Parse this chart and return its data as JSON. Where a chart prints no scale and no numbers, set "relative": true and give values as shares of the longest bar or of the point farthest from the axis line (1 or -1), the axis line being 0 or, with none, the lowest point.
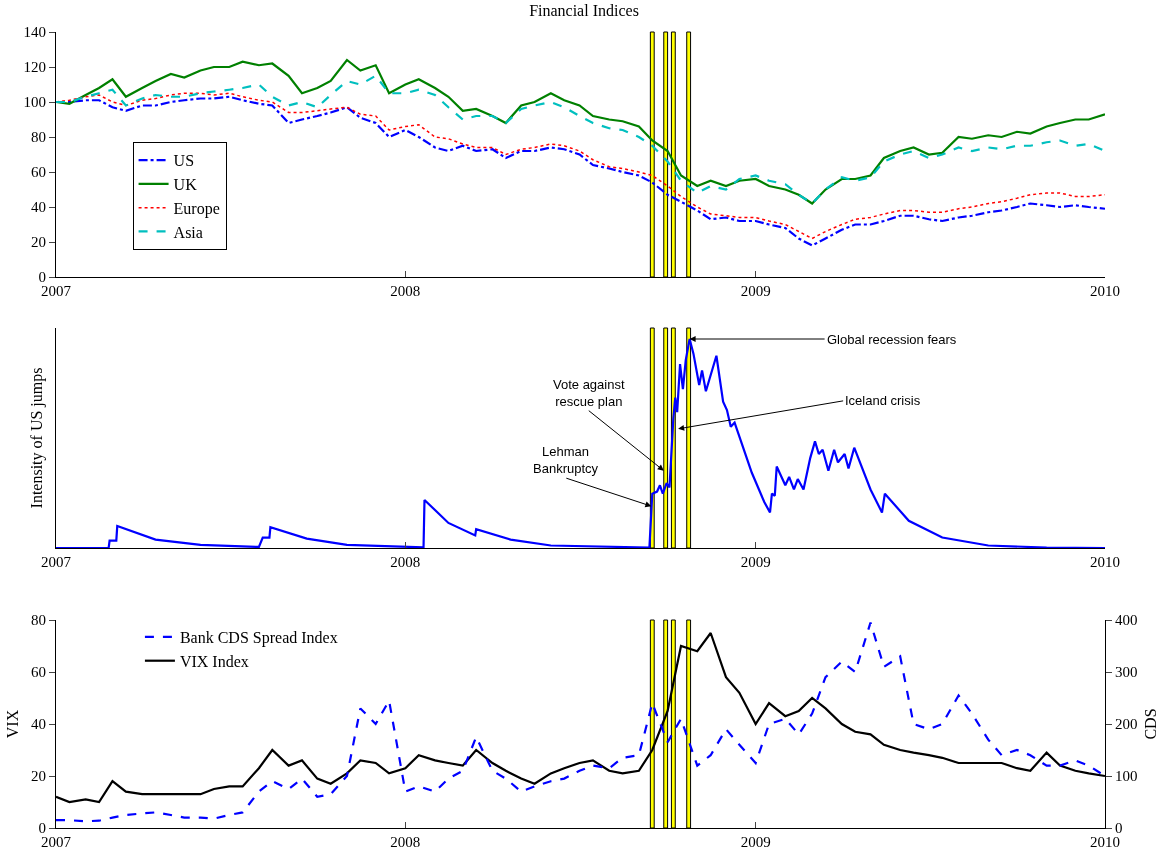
{
  "chart_data": [
    {
      "type": "line",
      "title": "Financial Indices",
      "xlim": [
        "2007-01-01",
        "2010-01-01"
      ],
      "xticks": [
        {
          "value": "2007-01-01",
          "label": "2007"
        },
        {
          "value": "2008-01-01",
          "label": "2008"
        },
        {
          "value": "2009-01-01",
          "label": "2009"
        },
        {
          "value": "2010-01-01",
          "label": "2010"
        }
      ],
      "ylim": [
        0,
        140
      ],
      "yticks": [
        0,
        20,
        40,
        60,
        80,
        100,
        120,
        140
      ],
      "grid": false,
      "legend": "left",
      "x": [
        "2007-01-01",
        "2007-01-15",
        "2007-02-01",
        "2007-02-15",
        "2007-03-01",
        "2007-03-15",
        "2007-04-01",
        "2007-04-15",
        "2007-05-01",
        "2007-05-15",
        "2007-06-01",
        "2007-06-15",
        "2007-07-01",
        "2007-07-15",
        "2007-08-01",
        "2007-08-15",
        "2007-09-01",
        "2007-09-15",
        "2007-10-01",
        "2007-10-15",
        "2007-11-01",
        "2007-11-15",
        "2007-12-01",
        "2007-12-15",
        "2008-01-01",
        "2008-01-15",
        "2008-02-01",
        "2008-02-15",
        "2008-03-01",
        "2008-03-15",
        "2008-04-01",
        "2008-04-15",
        "2008-05-01",
        "2008-05-15",
        "2008-06-01",
        "2008-06-15",
        "2008-07-01",
        "2008-07-15",
        "2008-08-01",
        "2008-08-15",
        "2008-09-01",
        "2008-09-15",
        "2008-10-01",
        "2008-10-15",
        "2008-11-01",
        "2008-11-15",
        "2008-12-01",
        "2008-12-15",
        "2009-01-01",
        "2009-01-15",
        "2009-02-01",
        "2009-02-15",
        "2009-03-01",
        "2009-03-15",
        "2009-04-01",
        "2009-04-15",
        "2009-05-01",
        "2009-05-15",
        "2009-06-01",
        "2009-06-15",
        "2009-07-01",
        "2009-07-15",
        "2009-08-01",
        "2009-08-15",
        "2009-09-01",
        "2009-09-15",
        "2009-10-01",
        "2009-10-15",
        "2009-11-01",
        "2009-11-15",
        "2009-12-01",
        "2009-12-15",
        "2010-01-01"
      ],
      "series": [
        {
          "name": "US",
          "color": "#0000ff",
          "line_style": "dashdot",
          "values": [
            100,
            100,
            101,
            101,
            97,
            95,
            98,
            98,
            100,
            101,
            102,
            102,
            103,
            101,
            99,
            98,
            88,
            90,
            92,
            94,
            97,
            91,
            88,
            80,
            84,
            80,
            74,
            72,
            75,
            72,
            73,
            68,
            72,
            72,
            74,
            73,
            70,
            64,
            62,
            60,
            58,
            54,
            47,
            43,
            38,
            33,
            34,
            32,
            32,
            30,
            28,
            22,
            18,
            22,
            27,
            30,
            30,
            32,
            35,
            35,
            33,
            32,
            34,
            35,
            37,
            38,
            40,
            42,
            41,
            40,
            41,
            40,
            39
          ]
        },
        {
          "name": "UK",
          "color": "#008000",
          "line_style": "solid",
          "values": [
            100,
            99,
            104,
            108,
            113,
            103,
            108,
            112,
            116,
            114,
            118,
            120,
            120,
            123,
            121,
            122,
            115,
            105,
            108,
            112,
            124,
            118,
            121,
            105,
            110,
            113,
            108,
            103,
            95,
            96,
            92,
            88,
            98,
            100,
            105,
            101,
            98,
            92,
            90,
            89,
            86,
            78,
            72,
            58,
            52,
            55,
            52,
            55,
            56,
            52,
            50,
            47,
            42,
            50,
            56,
            56,
            58,
            68,
            72,
            74,
            70,
            71,
            80,
            79,
            81,
            80,
            83,
            82,
            86,
            88,
            90,
            90,
            93
          ]
        },
        {
          "name": "Europe",
          "color": "#ff0000",
          "line_style": "dotted",
          "values": [
            100,
            101,
            103,
            104,
            100,
            98,
            101,
            102,
            104,
            105,
            105,
            104,
            105,
            103,
            101,
            100,
            94,
            94,
            95,
            96,
            97,
            93,
            92,
            84,
            86,
            87,
            80,
            79,
            76,
            74,
            74,
            70,
            73,
            74,
            76,
            75,
            72,
            67,
            63,
            62,
            60,
            58,
            52,
            46,
            40,
            36,
            35,
            34,
            34,
            32,
            30,
            26,
            22,
            26,
            30,
            33,
            34,
            36,
            38,
            38,
            37,
            37,
            39,
            40,
            42,
            43,
            45,
            47,
            48,
            48,
            46,
            46,
            47
          ]
        },
        {
          "name": "Asia",
          "color": "#00bfbf",
          "line_style": "dashed",
          "values": [
            100,
            100,
            103,
            105,
            107,
            98,
            102,
            104,
            103,
            103,
            105,
            106,
            107,
            108,
            110,
            103,
            98,
            100,
            97,
            104,
            112,
            110,
            115,
            105,
            105,
            107,
            104,
            97,
            90,
            92,
            92,
            88,
            96,
            98,
            100,
            97,
            92,
            88,
            85,
            84,
            80,
            75,
            66,
            55,
            48,
            52,
            50,
            56,
            58,
            55,
            53,
            47,
            42,
            50,
            57,
            55,
            57,
            66,
            70,
            72,
            68,
            70,
            74,
            72,
            74,
            73,
            75,
            75,
            77,
            78,
            75,
            76,
            72
          ]
        }
      ],
      "bands": [
        {
          "axis": "x",
          "from": "2008-09-13",
          "to": "2008-09-17",
          "color": "#ffff00"
        },
        {
          "axis": "x",
          "from": "2008-09-27",
          "to": "2008-10-01",
          "color": "#ffff00"
        },
        {
          "axis": "x",
          "from": "2008-10-05",
          "to": "2008-10-09",
          "color": "#ffff00"
        },
        {
          "axis": "x",
          "from": "2008-10-21",
          "to": "2008-10-25",
          "color": "#ffff00"
        }
      ]
    },
    {
      "type": "line",
      "relative": true,
      "ylabel": "Intensity of US jumps",
      "grid": false,
      "xlim": [
        "2007-01-01",
        "2010-01-01"
      ],
      "xticks": [
        {
          "value": "2007-01-01",
          "label": "2007"
        },
        {
          "value": "2008-01-01",
          "label": "2008"
        },
        {
          "value": "2009-01-01",
          "label": "2009"
        },
        {
          "value": "2010-01-01",
          "label": "2010"
        }
      ],
      "x": [
        "2007-01-01",
        "2007-02-25",
        "2007-02-26",
        "2007-03-05",
        "2007-03-06",
        "2007-04-15",
        "2007-06-01",
        "2007-08-01",
        "2007-08-05",
        "2007-08-12",
        "2007-08-13",
        "2007-09-20",
        "2007-11-01",
        "2008-01-20",
        "2008-01-21",
        "2008-02-15",
        "2008-03-14",
        "2008-03-15",
        "2008-04-20",
        "2008-06-01",
        "2008-09-12",
        "2008-09-15",
        "2008-09-20",
        "2008-09-23",
        "2008-09-26",
        "2008-09-30",
        "2008-10-03",
        "2008-10-07",
        "2008-10-09",
        "2008-10-11",
        "2008-10-14",
        "2008-10-17",
        "2008-10-20",
        "2008-10-24",
        "2008-10-28",
        "2008-11-03",
        "2008-11-06",
        "2008-11-10",
        "2008-11-21",
        "2008-11-28",
        "2008-12-02",
        "2008-12-06",
        "2008-12-10",
        "2008-12-28",
        "2009-01-10",
        "2009-01-16",
        "2009-01-18",
        "2009-01-21",
        "2009-01-23",
        "2009-02-01",
        "2009-02-05",
        "2009-02-10",
        "2009-02-14",
        "2009-02-20",
        "2009-02-27",
        "2009-03-04",
        "2009-03-08",
        "2009-03-12",
        "2009-03-18",
        "2009-03-24",
        "2009-03-28",
        "2009-04-04",
        "2009-04-08",
        "2009-04-14",
        "2009-05-01",
        "2009-05-13",
        "2009-05-16",
        "2009-06-10",
        "2009-07-15",
        "2009-09-01",
        "2009-11-01",
        "2010-01-01"
      ],
      "series": [
        {
          "color": "#0000ff",
          "line_style": "solid",
          "values": [
            0,
            0,
            0.035,
            0.035,
            0.105,
            0.04,
            0.015,
            0.005,
            0.05,
            0.05,
            0.1,
            0.045,
            0.015,
            0.003,
            0.23,
            0.12,
            0.06,
            0.09,
            0.04,
            0.012,
            0.002,
            0.26,
            0.27,
            0.3,
            0.26,
            0.31,
            0.29,
            0.62,
            0.72,
            0.65,
            0.88,
            0.76,
            0.9,
            1,
            0.93,
            0.78,
            0.85,
            0.75,
            0.92,
            0.7,
            0.66,
            0.58,
            0.6,
            0.36,
            0.22,
            0.17,
            0.26,
            0.25,
            0.39,
            0.3,
            0.34,
            0.28,
            0.33,
            0.28,
            0.43,
            0.51,
            0.45,
            0.47,
            0.37,
            0.47,
            0.41,
            0.45,
            0.38,
            0.48,
            0.28,
            0.17,
            0.26,
            0.13,
            0.05,
            0.012,
            0.002,
            0
          ]
        }
      ],
      "annotations": [
        {
          "text": "Global recession fears",
          "x": "2008-10-24",
          "y": 1
        },
        {
          "text": "Iceland crisis",
          "x": "2008-10-12",
          "y": 0.57
        },
        {
          "text": "Vote against\nrescue plan",
          "x": "2008-09-27",
          "y": 0.37
        },
        {
          "text": "Lehman\nBankruptcy",
          "x": "2008-09-14",
          "y": 0.2
        }
      ],
      "bands": [
        {
          "axis": "x",
          "from": "2008-09-13",
          "to": "2008-09-17",
          "color": "#ffff00"
        },
        {
          "axis": "x",
          "from": "2008-09-27",
          "to": "2008-10-01",
          "color": "#ffff00"
        },
        {
          "axis": "x",
          "from": "2008-10-05",
          "to": "2008-10-09",
          "color": "#ffff00"
        },
        {
          "axis": "x",
          "from": "2008-10-21",
          "to": "2008-10-25",
          "color": "#ffff00"
        }
      ]
    },
    {
      "type": "line",
      "ylabel": "VIX",
      "y2label": "CDS",
      "grid": false,
      "legend": "top left",
      "xlim": [
        "2007-01-01",
        "2010-01-01"
      ],
      "xticks": [
        {
          "value": "2007-01-01",
          "label": "2007"
        },
        {
          "value": "2008-01-01",
          "label": "2008"
        },
        {
          "value": "2009-01-01",
          "label": "2009"
        },
        {
          "value": "2010-01-01",
          "label": "2010"
        }
      ],
      "ylim": [
        0,
        80
      ],
      "yticks": [
        0,
        20,
        40,
        60,
        80
      ],
      "y2lim": [
        0,
        400
      ],
      "y2ticks": [
        0,
        100,
        200,
        300,
        400
      ],
      "x": [
        "2007-01-01",
        "2007-01-15",
        "2007-02-01",
        "2007-02-15",
        "2007-03-01",
        "2007-03-15",
        "2007-04-01",
        "2007-04-15",
        "2007-05-01",
        "2007-05-15",
        "2007-06-01",
        "2007-06-15",
        "2007-07-01",
        "2007-07-15",
        "2007-08-01",
        "2007-08-15",
        "2007-09-01",
        "2007-09-15",
        "2007-10-01",
        "2007-10-15",
        "2007-11-01",
        "2007-11-15",
        "2007-12-01",
        "2007-12-15",
        "2008-01-01",
        "2008-01-15",
        "2008-02-01",
        "2008-02-15",
        "2008-03-01",
        "2008-03-15",
        "2008-04-01",
        "2008-04-15",
        "2008-05-01",
        "2008-05-15",
        "2008-06-01",
        "2008-06-15",
        "2008-07-01",
        "2008-07-15",
        "2008-08-01",
        "2008-08-15",
        "2008-09-01",
        "2008-09-15",
        "2008-10-01",
        "2008-10-15",
        "2008-11-01",
        "2008-11-15",
        "2008-12-01",
        "2008-12-15",
        "2009-01-01",
        "2009-01-15",
        "2009-02-01",
        "2009-02-15",
        "2009-03-01",
        "2009-03-15",
        "2009-04-01",
        "2009-04-15",
        "2009-05-01",
        "2009-05-15",
        "2009-06-01",
        "2009-06-15",
        "2009-07-01",
        "2009-07-15",
        "2009-08-01",
        "2009-08-15",
        "2009-09-01",
        "2009-09-15",
        "2009-10-01",
        "2009-10-15",
        "2009-11-01",
        "2009-11-15",
        "2009-12-01",
        "2009-12-15",
        "2010-01-01"
      ],
      "series": [
        {
          "name": "Bank CDS Spread Index",
          "color": "#0000ff",
          "line_style": "dashed",
          "axis": "y2",
          "values": [
            15,
            15,
            13,
            14,
            20,
            25,
            28,
            30,
            25,
            20,
            20,
            18,
            25,
            30,
            70,
            90,
            75,
            95,
            60,
            65,
            100,
            230,
            200,
            245,
            70,
            80,
            70,
            95,
            110,
            175,
            110,
            95,
            70,
            80,
            90,
            95,
            110,
            120,
            115,
            135,
            140,
            240,
            165,
            210,
            120,
            140,
            190,
            160,
            125,
            200,
            210,
            180,
            220,
            290,
            320,
            300,
            395,
            310,
            330,
            200,
            190,
            200,
            255,
            220,
            170,
            140,
            150,
            140,
            120,
            120,
            130,
            120,
            100
          ]
        },
        {
          "name": "VIX Index",
          "color": "#000000",
          "line_style": "solid",
          "values": [
            12,
            10,
            11,
            10,
            18,
            14,
            13,
            13,
            13,
            13,
            13,
            15,
            16,
            16,
            23,
            30,
            24,
            26,
            19,
            17,
            21,
            26,
            25,
            21,
            23,
            28,
            26,
            25,
            24,
            30,
            25,
            22,
            19,
            17,
            21,
            23,
            25,
            26,
            22,
            21,
            22,
            30,
            45,
            70,
            68,
            75,
            58,
            52,
            40,
            48,
            43,
            45,
            50,
            46,
            40,
            37,
            36,
            32,
            30,
            29,
            28,
            27,
            25,
            25,
            25,
            25,
            23,
            22,
            29,
            24,
            22,
            21,
            20
          ]
        }
      ],
      "bands": [
        {
          "axis": "x",
          "from": "2008-09-13",
          "to": "2008-09-17",
          "color": "#ffff00"
        },
        {
          "axis": "x",
          "from": "2008-09-27",
          "to": "2008-10-01",
          "color": "#ffff00"
        },
        {
          "axis": "x",
          "from": "2008-10-05",
          "to": "2008-10-09",
          "color": "#ffff00"
        },
        {
          "axis": "x",
          "from": "2008-10-21",
          "to": "2008-10-25",
          "color": "#ffff00"
        }
      ]
    }
  ]
}
